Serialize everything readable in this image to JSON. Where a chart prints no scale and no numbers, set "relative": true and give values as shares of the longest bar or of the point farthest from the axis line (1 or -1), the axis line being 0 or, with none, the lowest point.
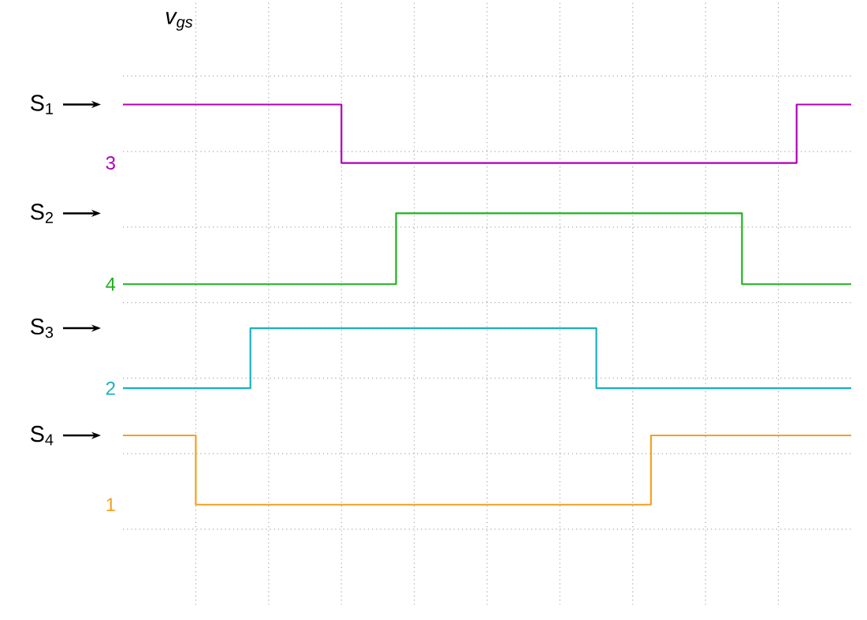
{
  "chart_data": {
    "type": "step",
    "relative": true,
    "title": "*v*$_{gs}$",
    "grid": true,
    "categories": [
      null,
      null,
      null,
      null,
      null,
      null,
      null,
      null,
      null,
      null,
      null,
      null,
      null,
      null,
      null,
      null,
      null,
      null,
      null,
      null,
      null,
      null,
      null,
      null,
      null,
      null,
      null,
      null,
      null,
      null,
      null,
      null,
      null,
      null,
      null,
      null,
      null,
      null,
      null,
      null,
      null
    ],
    "series": [
      {
        "name": "3",
        "color": "#b000b8",
        "values": [
          1,
          1,
          1,
          1,
          1,
          1,
          1,
          1,
          1,
          1,
          1,
          1,
          0.854,
          0.854,
          0.854,
          0.854,
          0.854,
          0.854,
          0.854,
          0.854,
          0.854,
          0.854,
          0.854,
          0.854,
          0.854,
          0.854,
          0.854,
          0.854,
          0.854,
          0.854,
          0.854,
          0.854,
          0.854,
          0.854,
          0.854,
          0.854,
          0.854,
          1,
          1,
          1,
          1
        ]
      },
      {
        "name": "4",
        "color": "#20b020",
        "values": [
          0.551,
          0.551,
          0.551,
          0.551,
          0.551,
          0.551,
          0.551,
          0.551,
          0.551,
          0.551,
          0.551,
          0.551,
          0.551,
          0.551,
          0.551,
          0.728,
          0.728,
          0.728,
          0.728,
          0.728,
          0.728,
          0.728,
          0.728,
          0.728,
          0.728,
          0.728,
          0.728,
          0.728,
          0.728,
          0.728,
          0.728,
          0.728,
          0.728,
          0.728,
          0.551,
          0.551,
          0.551,
          0.551,
          0.551,
          0.551,
          0.551
        ]
      },
      {
        "name": "2",
        "color": "#18b0c0",
        "values": [
          0.291,
          0.291,
          0.291,
          0.291,
          0.291,
          0.291,
          0.291,
          0.441,
          0.441,
          0.441,
          0.441,
          0.441,
          0.441,
          0.441,
          0.441,
          0.441,
          0.441,
          0.441,
          0.441,
          0.441,
          0.441,
          0.441,
          0.441,
          0.441,
          0.441,
          0.441,
          0.291,
          0.291,
          0.291,
          0.291,
          0.291,
          0.291,
          0.291,
          0.291,
          0.291,
          0.291,
          0.291,
          0.291,
          0.291,
          0.291,
          0.291
        ]
      },
      {
        "name": "1",
        "color": "#f4a020",
        "values": [
          0.173,
          0.173,
          0.173,
          0.173,
          0,
          0,
          0,
          0,
          0,
          0,
          0,
          0,
          0,
          0,
          0,
          0,
          0,
          0,
          0,
          0,
          0,
          0,
          0,
          0,
          0,
          0,
          0,
          0,
          0,
          0.173,
          0.173,
          0.173,
          0.173,
          0.173,
          0.173,
          0.173,
          0.173,
          0.173,
          0.173,
          0.173,
          0.173
        ]
      }
    ],
    "annotations": [
      "S$_{1}$",
      "S$_{2}$",
      "S$_{3}$",
      "S$_{4}$"
    ]
  }
}
